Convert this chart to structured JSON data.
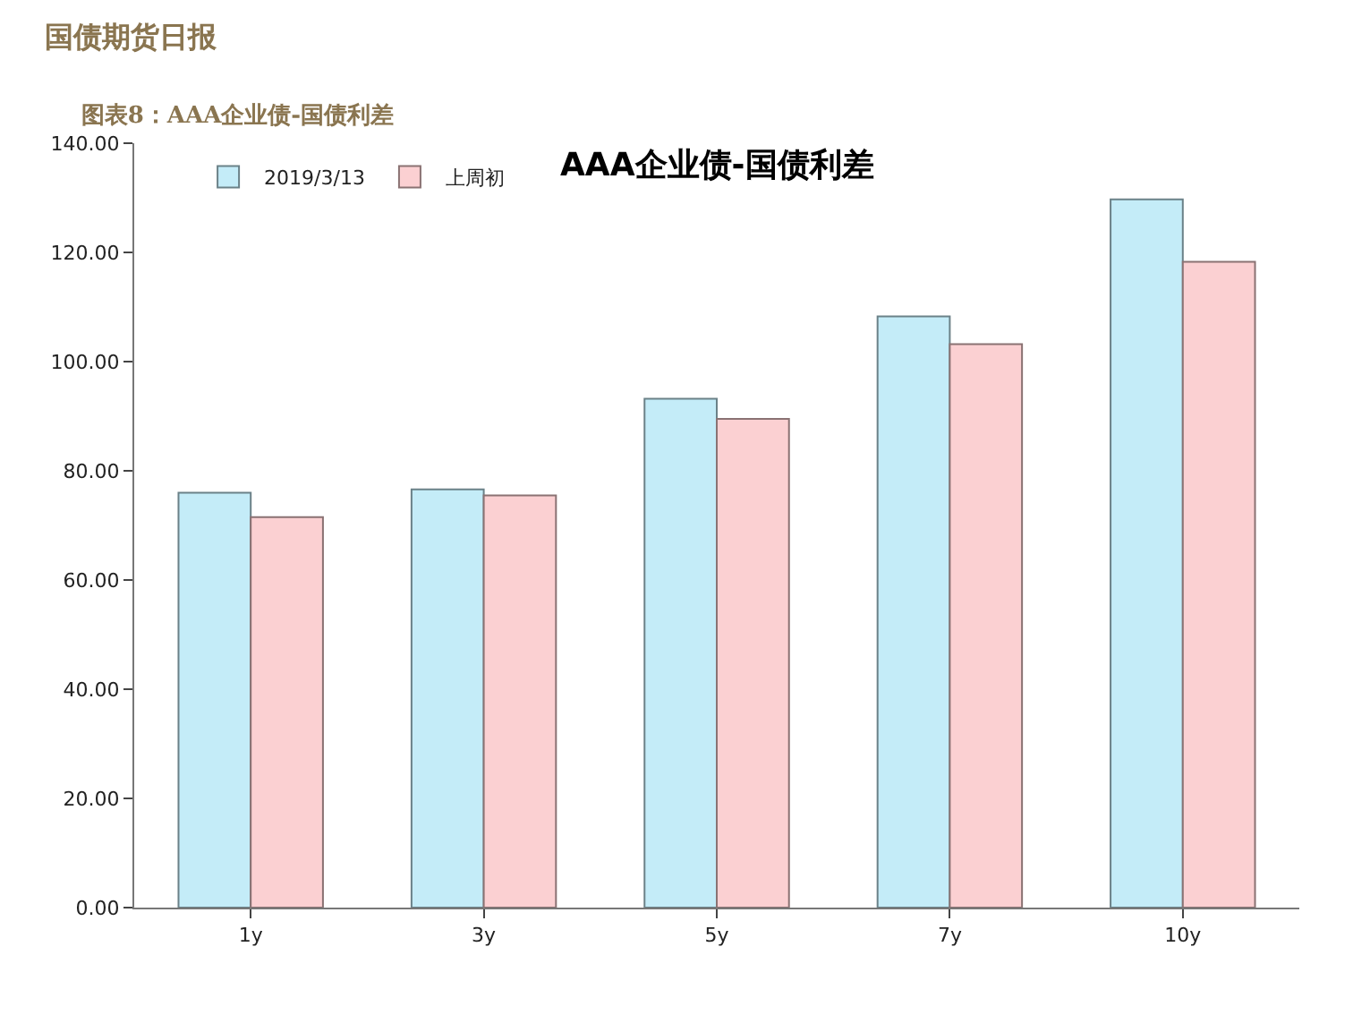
{
  "chart_data": {
    "type": "bar",
    "title": "图表8：AAA企业债-国债利差",
    "subtitle": "AAA企业债-国债利差",
    "annotations": [
      "国债期货日报"
    ],
    "categories": [
      "1y",
      "3y",
      "5y",
      "7y",
      "10y"
    ],
    "series": [
      {
        "name": "2019/3/13",
        "color": "#c4ecf8",
        "values": [
          76,
          76.6,
          93.2,
          108.3,
          129.7
        ]
      },
      {
        "name": "上周初",
        "color": "#fbd0d2",
        "values": [
          71.5,
          75.5,
          89.5,
          103.2,
          118.3
        ]
      }
    ],
    "ylim": [
      0,
      140
    ],
    "yticks": [
      {
        "value": 0,
        "label": "0.00"
      },
      {
        "value": 20,
        "label": "20.00"
      },
      {
        "value": 40,
        "label": "40.00"
      },
      {
        "value": 60,
        "label": "60.00"
      },
      {
        "value": 80,
        "label": "80.00"
      },
      {
        "value": 100,
        "label": "100.00"
      },
      {
        "value": 120,
        "label": "120.00"
      },
      {
        "value": 140,
        "label": "140.00"
      }
    ],
    "grid": false,
    "legend": "top left"
  }
}
